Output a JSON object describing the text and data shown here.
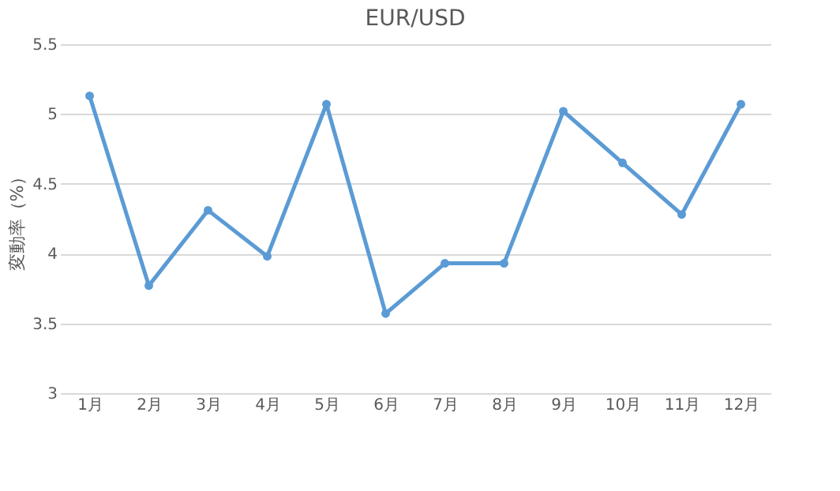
{
  "chart_data": {
    "type": "line",
    "title": "EUR/USD",
    "ylabel": "変動率（%）",
    "categories": [
      "1月",
      "2月",
      "3月",
      "4月",
      "5月",
      "6月",
      "7月",
      "8月",
      "9月",
      "10月",
      "11月",
      "12月"
    ],
    "series": [
      {
        "color": "#5b9bd5",
        "values": [
          5.13,
          3.77,
          4.31,
          3.98,
          5.07,
          3.57,
          3.93,
          3.93,
          5.02,
          4.65,
          4.28,
          5.07
        ]
      }
    ],
    "ylim": [
      3,
      5.5
    ],
    "yticks": [
      3,
      3.5,
      4,
      4.5,
      5,
      5.5
    ],
    "grid": "y",
    "marker": "circle",
    "line_style": "solid"
  }
}
